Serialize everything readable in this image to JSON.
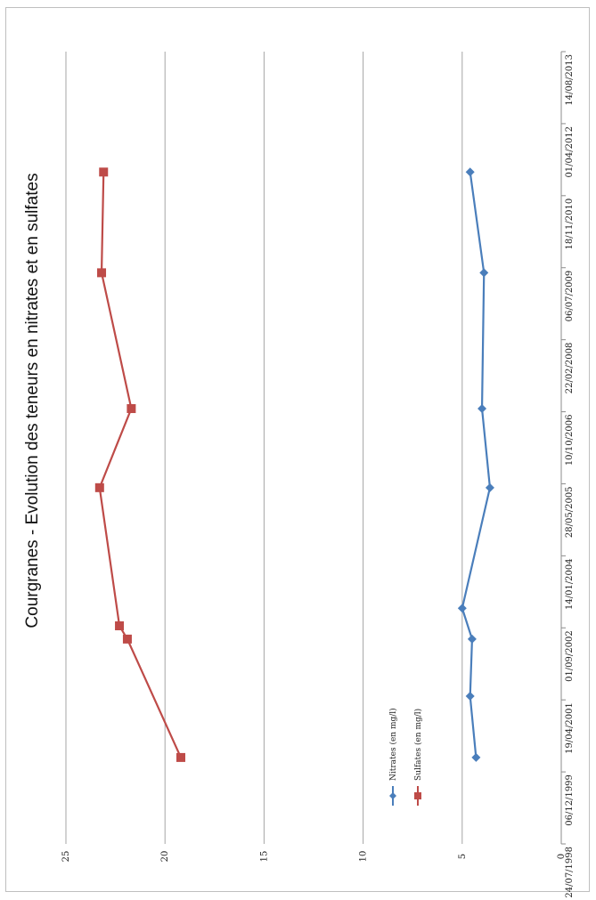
{
  "chart_data": {
    "type": "line",
    "title": "Courgranes - Evolution des teneurs en nitrates et en sulfates",
    "x_axis": {
      "type": "date",
      "ticks": [
        "24/07/1998",
        "06/12/1999",
        "19/04/2001",
        "01/09/2002",
        "14/01/2004",
        "28/05/2005",
        "10/10/2006",
        "22/02/2008",
        "06/07/2009",
        "18/11/2010",
        "01/04/2012",
        "14/08/2013"
      ]
    },
    "y_axis": {
      "ylim": [
        0,
        25
      ],
      "ticks": [
        "0",
        "5",
        "10",
        "15",
        "20",
        "25"
      ],
      "grid": true
    },
    "series": [
      {
        "name": "Nitrates (en mg/l)",
        "color": "#4a7ebb",
        "marker": "diamond",
        "points": [
          {
            "x": "2000-03-15",
            "y": 4.3
          },
          {
            "x": "2001-05-15",
            "y": 4.6
          },
          {
            "x": "2002-06-15",
            "y": 4.5
          },
          {
            "x": "2003-01-15",
            "y": 5.0
          },
          {
            "x": "2005-05-01",
            "y": 3.6
          },
          {
            "x": "2006-11-01",
            "y": 4.0
          },
          {
            "x": "2009-06-01",
            "y": 3.9
          },
          {
            "x": "2011-05-01",
            "y": 4.6
          }
        ]
      },
      {
        "name": "Sulfates (en mg/l)",
        "color": "#be4b48",
        "marker": "square",
        "points": [
          {
            "x": "2000-03-15",
            "y": 19.2
          },
          {
            "x": "2002-06-15",
            "y": 21.9
          },
          {
            "x": "2002-09-15",
            "y": 22.3
          },
          {
            "x": "2005-05-01",
            "y": 23.3
          },
          {
            "x": "2006-11-01",
            "y": 21.7
          },
          {
            "x": "2009-06-01",
            "y": 23.2
          },
          {
            "x": "2011-05-01",
            "y": 23.1
          }
        ]
      }
    ],
    "legend": {
      "placement": "bottom-left"
    }
  }
}
